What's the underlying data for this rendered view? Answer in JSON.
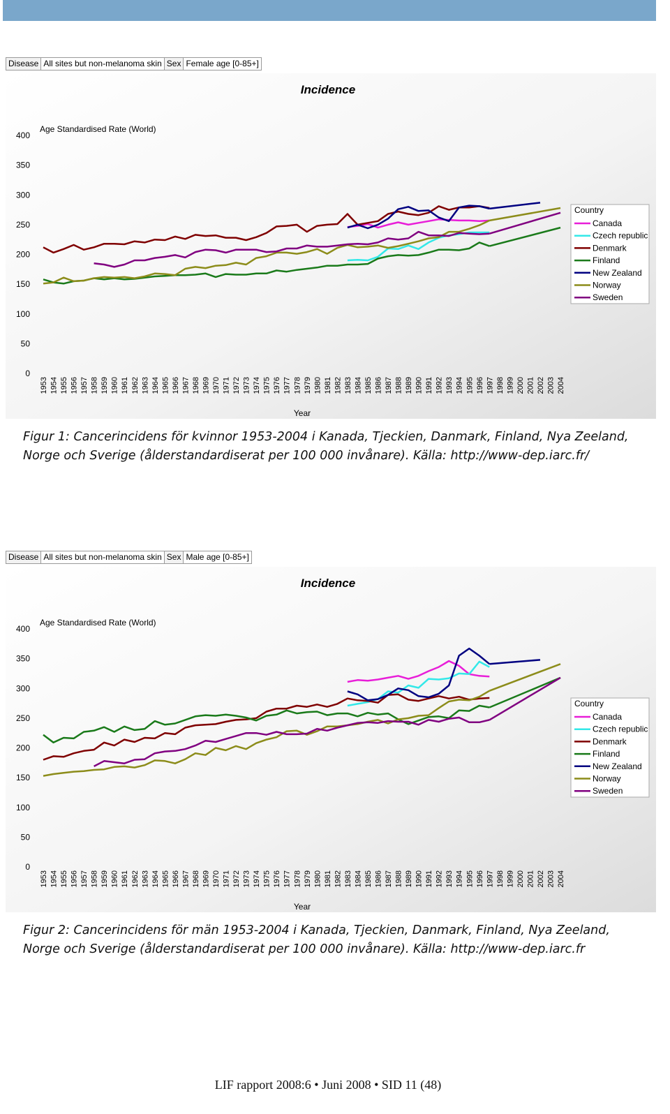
{
  "chart_data": [
    {
      "type": "line",
      "filters": [
        {
          "label": "Disease",
          "value": "All sites but non-melanoma skin"
        },
        {
          "label": "Sex",
          "value": "Female age [0-85+]"
        }
      ],
      "title": "Incidence",
      "y_label": "Age Standardised Rate (World)",
      "x_label": "Year",
      "legend_title": "Country",
      "caption": "Figur 1: Cancerincidens för kvinnor 1953-2004 i Kanada, Tjeckien, Danmark, Finland, Nya Zeeland, Norge och Sverige (ålderstandardiserat per 100 000 invånare). Källa: http://www-dep.iarc.fr/",
      "connect_gaps": true,
      "legend": "right",
      "ylim": [
        0,
        400
      ],
      "yticks": [
        0,
        50,
        100,
        150,
        200,
        250,
        300,
        350,
        400
      ],
      "categories": [
        "1953",
        "1954",
        "1955",
        "1956",
        "1957",
        "1958",
        "1959",
        "1960",
        "1961",
        "1962",
        "1963",
        "1964",
        "1965",
        "1966",
        "1967",
        "1968",
        "1969",
        "1970",
        "1971",
        "1972",
        "1973",
        "1974",
        "1975",
        "1976",
        "1977",
        "1978",
        "1979",
        "1980",
        "1981",
        "1982",
        "1983",
        "1984",
        "1985",
        "1986",
        "1987",
        "1988",
        "1989",
        "1990",
        "1991",
        "1992",
        "1993",
        "1994",
        "1995",
        "1996",
        "1997",
        "1998",
        "1999",
        "2000",
        "2001",
        "2002",
        "2003",
        "2004"
      ],
      "series": [
        {
          "name": "Canada",
          "color": "#e81ed8",
          "values": [
            null,
            null,
            null,
            null,
            null,
            null,
            null,
            null,
            null,
            null,
            null,
            null,
            null,
            null,
            null,
            null,
            null,
            null,
            null,
            null,
            null,
            null,
            null,
            null,
            null,
            null,
            null,
            null,
            null,
            null,
            246,
            248,
            251,
            245,
            250,
            254,
            250,
            253,
            256,
            259,
            258,
            257,
            257,
            256,
            257,
            null,
            null,
            null,
            null,
            null,
            null,
            null
          ]
        },
        {
          "name": "Czech republic",
          "color": "#33e8e8",
          "values": [
            null,
            null,
            null,
            null,
            null,
            null,
            null,
            null,
            null,
            null,
            null,
            null,
            null,
            null,
            null,
            null,
            null,
            null,
            null,
            null,
            null,
            null,
            null,
            null,
            null,
            null,
            null,
            null,
            null,
            null,
            190,
            191,
            190,
            196,
            210,
            209,
            215,
            209,
            220,
            228,
            232,
            234,
            237,
            237,
            237,
            null,
            null,
            null,
            null,
            null,
            null,
            null
          ]
        },
        {
          "name": "Denmark",
          "color": "#7f0000",
          "values": [
            212,
            203,
            209,
            216,
            208,
            212,
            218,
            218,
            217,
            222,
            220,
            225,
            224,
            230,
            226,
            233,
            231,
            232,
            228,
            228,
            224,
            229,
            236,
            247,
            248,
            250,
            238,
            248,
            250,
            251,
            268,
            250,
            253,
            256,
            268,
            272,
            268,
            266,
            270,
            281,
            275,
            279,
            279,
            281,
            278,
            null,
            null,
            null,
            null,
            null,
            null,
            null
          ]
        },
        {
          "name": "Finland",
          "color": "#1a7a1a",
          "values": [
            158,
            153,
            151,
            155,
            156,
            160,
            158,
            160,
            158,
            159,
            161,
            163,
            164,
            165,
            165,
            166,
            168,
            162,
            167,
            166,
            166,
            168,
            168,
            173,
            171,
            174,
            176,
            178,
            181,
            181,
            183,
            183,
            184,
            193,
            197,
            199,
            198,
            199,
            203,
            208,
            208,
            207,
            210,
            220,
            214,
            null,
            null,
            null,
            null,
            null,
            null,
            245
          ]
        },
        {
          "name": "New Zealand",
          "color": "#000080",
          "values": [
            null,
            null,
            null,
            null,
            null,
            null,
            null,
            null,
            null,
            null,
            null,
            null,
            null,
            null,
            null,
            null,
            null,
            null,
            null,
            null,
            null,
            null,
            null,
            null,
            null,
            null,
            null,
            null,
            null,
            null,
            245,
            250,
            244,
            250,
            260,
            276,
            280,
            273,
            274,
            262,
            256,
            279,
            282,
            281,
            277,
            null,
            null,
            null,
            null,
            287,
            null,
            null
          ]
        },
        {
          "name": "Norway",
          "color": "#8c8c1a",
          "values": [
            151,
            153,
            161,
            155,
            156,
            160,
            162,
            161,
            162,
            160,
            163,
            168,
            167,
            165,
            176,
            179,
            177,
            181,
            182,
            186,
            183,
            194,
            197,
            203,
            203,
            201,
            204,
            209,
            201,
            211,
            216,
            212,
            213,
            215,
            211,
            214,
            218,
            222,
            227,
            229,
            238,
            238,
            243,
            249,
            257,
            null,
            null,
            null,
            null,
            null,
            null,
            278
          ]
        },
        {
          "name": "Sweden",
          "color": "#800080",
          "values": [
            null,
            null,
            null,
            null,
            null,
            185,
            183,
            179,
            183,
            190,
            190,
            194,
            196,
            199,
            195,
            204,
            208,
            207,
            203,
            208,
            208,
            208,
            204,
            205,
            210,
            210,
            215,
            213,
            213,
            215,
            217,
            218,
            217,
            220,
            227,
            225,
            227,
            238,
            232,
            232,
            231,
            236,
            235,
            234,
            235,
            null,
            null,
            null,
            null,
            null,
            null,
            270
          ]
        }
      ]
    },
    {
      "type": "line",
      "filters": [
        {
          "label": "Disease",
          "value": "All sites but non-melanoma skin"
        },
        {
          "label": "Sex",
          "value": "Male age [0-85+]"
        }
      ],
      "title": "Incidence",
      "y_label": "Age Standardised Rate (World)",
      "x_label": "Year",
      "legend_title": "Country",
      "caption": "Figur 2: Cancerincidens för män 1953-2004 i Kanada, Tjeckien, Danmark, Finland, Nya Zeeland, Norge och Sverige (ålderstandardiserat per 100 000 invånare). Källa: http://www-dep.iarc.fr",
      "connect_gaps": true,
      "legend": "right",
      "ylim": [
        0,
        400
      ],
      "yticks": [
        0,
        50,
        100,
        150,
        200,
        250,
        300,
        350,
        400
      ],
      "categories": [
        "1953",
        "1954",
        "1955",
        "1956",
        "1957",
        "1958",
        "1959",
        "1960",
        "1961",
        "1962",
        "1963",
        "1964",
        "1965",
        "1966",
        "1967",
        "1968",
        "1969",
        "1970",
        "1971",
        "1972",
        "1973",
        "1974",
        "1975",
        "1976",
        "1977",
        "1978",
        "1979",
        "1980",
        "1981",
        "1982",
        "1983",
        "1984",
        "1985",
        "1986",
        "1987",
        "1988",
        "1989",
        "1990",
        "1991",
        "1992",
        "1993",
        "1994",
        "1995",
        "1996",
        "1997",
        "1998",
        "1999",
        "2000",
        "2001",
        "2002",
        "2003",
        "2004"
      ],
      "series": [
        {
          "name": "Canada",
          "color": "#e81ed8",
          "values": [
            null,
            null,
            null,
            null,
            null,
            null,
            null,
            null,
            null,
            null,
            null,
            null,
            null,
            null,
            null,
            null,
            null,
            null,
            null,
            null,
            null,
            null,
            null,
            null,
            null,
            null,
            null,
            null,
            null,
            null,
            311,
            314,
            313,
            315,
            318,
            321,
            316,
            321,
            329,
            336,
            346,
            338,
            324,
            321,
            320,
            null,
            null,
            null,
            null,
            null,
            null,
            null
          ]
        },
        {
          "name": "Czech republic",
          "color": "#33e8e8",
          "values": [
            null,
            null,
            null,
            null,
            null,
            null,
            null,
            null,
            null,
            null,
            null,
            null,
            null,
            null,
            null,
            null,
            null,
            null,
            null,
            null,
            null,
            null,
            null,
            null,
            null,
            null,
            null,
            null,
            null,
            null,
            271,
            274,
            277,
            282,
            295,
            293,
            305,
            301,
            316,
            315,
            317,
            325,
            324,
            345,
            336,
            null,
            null,
            null,
            null,
            null,
            null,
            null
          ]
        },
        {
          "name": "Denmark",
          "color": "#7f0000",
          "values": [
            180,
            186,
            185,
            191,
            195,
            197,
            209,
            204,
            214,
            210,
            217,
            216,
            225,
            223,
            234,
            238,
            239,
            240,
            244,
            247,
            248,
            250,
            261,
            266,
            266,
            271,
            269,
            273,
            269,
            274,
            283,
            280,
            279,
            276,
            289,
            290,
            281,
            279,
            283,
            287,
            283,
            286,
            281,
            283,
            284,
            null,
            null,
            null,
            null,
            null,
            null,
            null
          ]
        },
        {
          "name": "Finland",
          "color": "#1a7a1a",
          "values": [
            222,
            209,
            217,
            216,
            227,
            229,
            235,
            227,
            236,
            230,
            232,
            245,
            239,
            241,
            247,
            253,
            255,
            254,
            256,
            254,
            251,
            246,
            254,
            256,
            263,
            258,
            260,
            261,
            255,
            258,
            258,
            253,
            259,
            256,
            258,
            248,
            240,
            246,
            252,
            253,
            250,
            263,
            262,
            271,
            268,
            null,
            null,
            null,
            null,
            null,
            null,
            318
          ]
        },
        {
          "name": "New Zealand",
          "color": "#000080",
          "values": [
            null,
            null,
            null,
            null,
            null,
            null,
            null,
            null,
            null,
            null,
            null,
            null,
            null,
            null,
            null,
            null,
            null,
            null,
            null,
            null,
            null,
            null,
            null,
            null,
            null,
            null,
            null,
            null,
            null,
            null,
            295,
            290,
            280,
            282,
            289,
            300,
            297,
            287,
            285,
            291,
            305,
            355,
            367,
            355,
            341,
            null,
            null,
            null,
            null,
            348,
            null,
            null
          ]
        },
        {
          "name": "Norway",
          "color": "#8c8c1a",
          "values": [
            153,
            156,
            158,
            160,
            161,
            163,
            164,
            168,
            169,
            167,
            171,
            179,
            178,
            174,
            181,
            191,
            188,
            200,
            196,
            203,
            198,
            208,
            214,
            218,
            228,
            229,
            222,
            228,
            236,
            236,
            238,
            240,
            244,
            247,
            241,
            248,
            250,
            254,
            255,
            267,
            278,
            281,
            280,
            286,
            296,
            null,
            null,
            null,
            null,
            null,
            null,
            341
          ]
        },
        {
          "name": "Sweden",
          "color": "#800080",
          "values": [
            null,
            null,
            null,
            null,
            null,
            169,
            178,
            176,
            174,
            180,
            181,
            191,
            194,
            195,
            198,
            204,
            212,
            210,
            215,
            220,
            225,
            225,
            222,
            227,
            223,
            223,
            224,
            232,
            229,
            234,
            238,
            242,
            243,
            242,
            245,
            244,
            244,
            239,
            247,
            244,
            249,
            251,
            243,
            243,
            247,
            null,
            null,
            null,
            null,
            null,
            null,
            318
          ]
        }
      ]
    }
  ],
  "footer": "LIF rapport 2008:6 • Juni 2008 • SID 11 (48)"
}
